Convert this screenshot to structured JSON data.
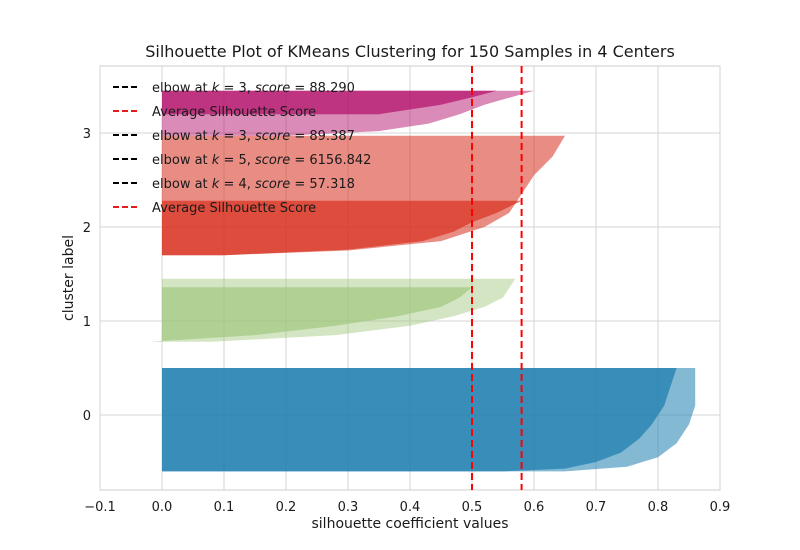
{
  "chart_data": {
    "type": "area",
    "title": "Silhouette Plot of KMeans Clustering for 150 Samples in 4 Centers",
    "xlabel": "silhouette coefficient values",
    "ylabel": "cluster label",
    "xlim": [
      -0.1,
      0.9
    ],
    "x_ticks": [
      "−0.1",
      "0.0",
      "0.1",
      "0.2",
      "0.3",
      "0.4",
      "0.5",
      "0.6",
      "0.7",
      "0.8",
      "0.9"
    ],
    "y_ticks": [
      "0",
      "1",
      "2",
      "3"
    ],
    "grid": true,
    "legend_position": "top-left",
    "average_silhouette_lines": [
      0.5,
      0.58
    ],
    "legend": [
      {
        "style": "dash",
        "color": "#000000",
        "parts": [
          [
            "elbow at ",
            false
          ],
          [
            "k",
            true
          ],
          [
            " = 3, ",
            false
          ],
          [
            "score",
            true
          ],
          [
            " = 88.290",
            false
          ]
        ]
      },
      {
        "style": "dash",
        "color": "#e41a1c",
        "parts": [
          [
            "Average Silhouette Score",
            false
          ]
        ]
      },
      {
        "style": "dash",
        "color": "#000000",
        "parts": [
          [
            "elbow at ",
            false
          ],
          [
            "k",
            true
          ],
          [
            " = 3, ",
            false
          ],
          [
            "score",
            true
          ],
          [
            " = 89.387",
            false
          ]
        ]
      },
      {
        "style": "dash",
        "color": "#000000",
        "parts": [
          [
            "elbow at ",
            false
          ],
          [
            "k",
            true
          ],
          [
            " = 5, ",
            false
          ],
          [
            "score",
            true
          ],
          [
            " = 6156.842",
            false
          ]
        ]
      },
      {
        "style": "dash",
        "color": "#000000",
        "parts": [
          [
            "elbow at ",
            false
          ],
          [
            "k",
            true
          ],
          [
            " = 4, ",
            false
          ],
          [
            "score",
            true
          ],
          [
            " = 57.318",
            false
          ]
        ]
      },
      {
        "style": "dash",
        "color": "#e41a1c",
        "parts": [
          [
            "Average Silhouette Score",
            false
          ]
        ]
      }
    ],
    "clusters": [
      {
        "label": "0",
        "color": "#1f7fb0",
        "alpha": 0.55,
        "y_range": [
          -0.6,
          0.5
        ],
        "profile": [
          [
            -0.6,
            0.65
          ],
          [
            -0.55,
            0.75
          ],
          [
            -0.45,
            0.8
          ],
          [
            -0.3,
            0.83
          ],
          [
            -0.1,
            0.85
          ],
          [
            0.1,
            0.86
          ],
          [
            0.35,
            0.86
          ],
          [
            0.5,
            0.86
          ]
        ]
      },
      {
        "label": "0",
        "color": "#1f7fb0",
        "alpha": 0.75,
        "y_range": [
          -0.6,
          0.5
        ],
        "profile": [
          [
            -0.6,
            0.55
          ],
          [
            -0.57,
            0.65
          ],
          [
            -0.5,
            0.7
          ],
          [
            -0.4,
            0.74
          ],
          [
            -0.25,
            0.77
          ],
          [
            -0.1,
            0.79
          ],
          [
            0.1,
            0.81
          ],
          [
            0.3,
            0.82
          ],
          [
            0.5,
            0.83
          ]
        ]
      },
      {
        "label": "1",
        "color": "#9dc67a",
        "alpha": 0.45,
        "y_range": [
          0.78,
          1.45
        ],
        "profile": [
          [
            0.78,
            0.08
          ],
          [
            0.85,
            0.28
          ],
          [
            0.95,
            0.4
          ],
          [
            1.05,
            0.47
          ],
          [
            1.15,
            0.52
          ],
          [
            1.25,
            0.55
          ],
          [
            1.35,
            0.56
          ],
          [
            1.45,
            0.57
          ]
        ]
      },
      {
        "label": "1",
        "color": "#9dc67a",
        "alpha": 0.65,
        "y_range": [
          0.78,
          1.36
        ],
        "profile": [
          [
            0.78,
            -0.02
          ],
          [
            0.85,
            0.15
          ],
          [
            0.95,
            0.28
          ],
          [
            1.05,
            0.38
          ],
          [
            1.15,
            0.45
          ],
          [
            1.25,
            0.48
          ],
          [
            1.36,
            0.5
          ]
        ]
      },
      {
        "label": "2",
        "color": "#d7301f",
        "alpha": 0.55,
        "y_range": [
          1.7,
          2.97
        ],
        "profile": [
          [
            1.7,
            0.1
          ],
          [
            1.75,
            0.3
          ],
          [
            1.85,
            0.45
          ],
          [
            2.0,
            0.52
          ],
          [
            2.15,
            0.56
          ],
          [
            2.35,
            0.58
          ],
          [
            2.55,
            0.6
          ],
          [
            2.75,
            0.63
          ],
          [
            2.97,
            0.65
          ]
        ]
      },
      {
        "label": "2",
        "color": "#d7301f",
        "alpha": 0.7,
        "y_range": [
          1.7,
          2.28
        ],
        "profile": [
          [
            1.7,
            0.1
          ],
          [
            1.76,
            0.3
          ],
          [
            1.85,
            0.42
          ],
          [
            1.95,
            0.47
          ],
          [
            2.05,
            0.5
          ],
          [
            2.15,
            0.54
          ],
          [
            2.28,
            0.58
          ]
        ]
      },
      {
        "label": "3",
        "color": "#b5176f",
        "alpha": 0.5,
        "y_range": [
          2.97,
          3.45
        ],
        "profile": [
          [
            2.97,
            0.2
          ],
          [
            3.02,
            0.35
          ],
          [
            3.1,
            0.43
          ],
          [
            3.2,
            0.48
          ],
          [
            3.3,
            0.52
          ],
          [
            3.45,
            0.6
          ]
        ]
      },
      {
        "label": "3",
        "color": "#b5176f",
        "alpha": 0.75,
        "y_range": [
          3.2,
          3.45
        ],
        "profile": [
          [
            3.2,
            0.35
          ],
          [
            3.3,
            0.45
          ],
          [
            3.38,
            0.5
          ],
          [
            3.45,
            0.54
          ]
        ]
      }
    ]
  }
}
